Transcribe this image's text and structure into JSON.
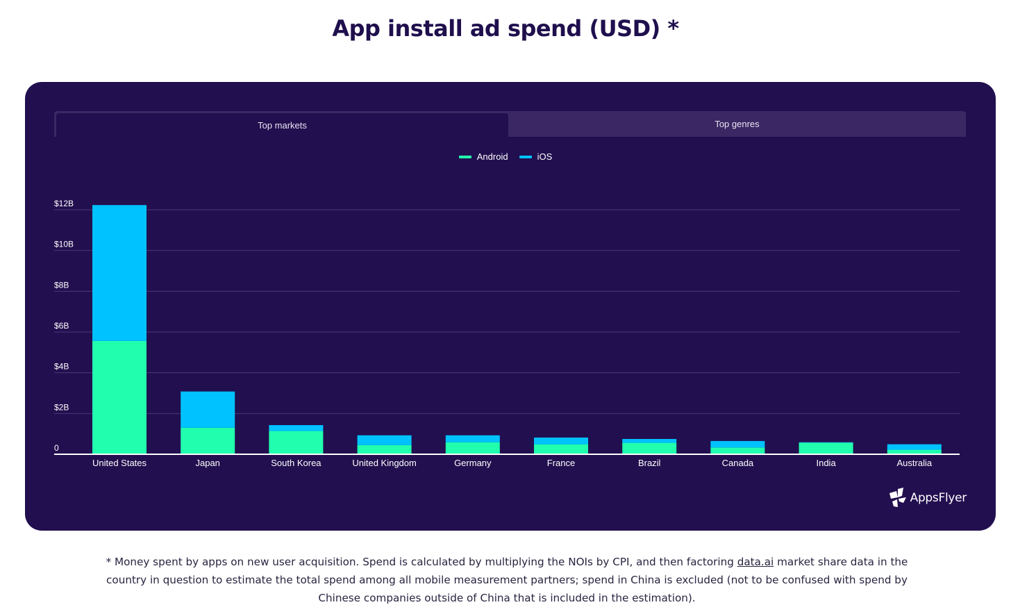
{
  "title": "App install ad spend (USD) *",
  "tabs": [
    {
      "label": "Top markets",
      "active": true
    },
    {
      "label": "Top genres",
      "active": false
    }
  ],
  "colors": {
    "android": "#21ffae",
    "ios": "#00c2ff",
    "card_bg": "#220f4f",
    "gridline": "#4a3a78",
    "axis": "#ffffff",
    "text": "#ffffff"
  },
  "legend": [
    {
      "label": "Android",
      "color": "#21ffae"
    },
    {
      "label": "iOS",
      "color": "#00c2ff"
    }
  ],
  "logo": {
    "text": "AppsFlyer",
    "icon": "appsflyer-logo-icon"
  },
  "footnote": {
    "part1": "* Money spent by apps on new user acquisition. Spend is calculated by multiplying the NOIs by CPI, and then factoring ",
    "link": "data.ai",
    "part2": " market share data in the country in question to estimate the total spend among all mobile measurement partners; spend in China is excluded (not to be confused with spend by Chinese companies outside of China that is included in the estimation)."
  },
  "chart_data": {
    "type": "bar",
    "stacked": true,
    "title": "App install ad spend (USD) *",
    "xlabel": "",
    "ylabel": "",
    "categories": [
      "United States",
      "Japan",
      "South Korea",
      "United Kingdom",
      "Germany",
      "France",
      "Brazil",
      "Canada",
      "India",
      "Australia"
    ],
    "series": [
      {
        "name": "Android",
        "color": "#21ffae",
        "values": [
          5.56,
          1.3,
          1.14,
          0.45,
          0.59,
          0.49,
          0.56,
          0.33,
          0.57,
          0.22
        ]
      },
      {
        "name": "iOS",
        "color": "#00c2ff",
        "values": [
          6.67,
          1.78,
          0.29,
          0.48,
          0.34,
          0.33,
          0.19,
          0.32,
          0.02,
          0.27
        ]
      }
    ],
    "unit": "billion USD",
    "ylim": [
      0,
      12
    ],
    "yticks": [
      0,
      2,
      4,
      6,
      8,
      10,
      12
    ],
    "ytick_labels": [
      "0",
      "$2B",
      "$4B",
      "$6B",
      "$8B",
      "$10B",
      "$12B"
    ],
    "grid": true,
    "legend_position": "top-center"
  }
}
